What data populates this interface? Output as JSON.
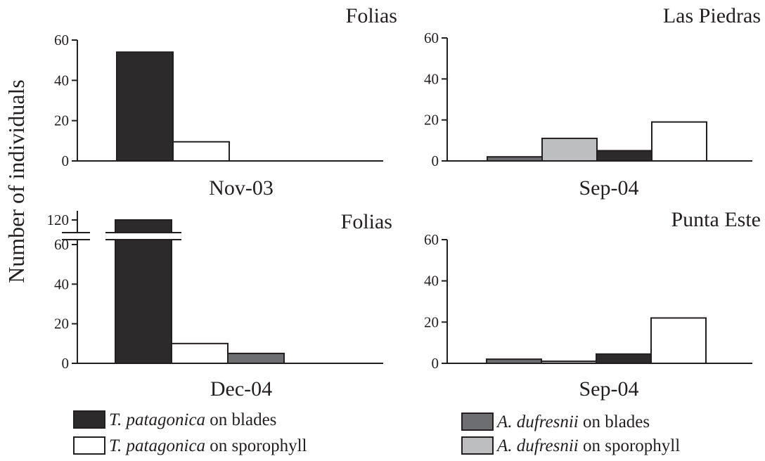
{
  "chart_data": [
    {
      "type": "bar",
      "title": "Folias",
      "category_label": "Nov-03",
      "ylim": [
        0,
        60
      ],
      "yticks": [
        "0",
        "20",
        "40",
        "60"
      ],
      "bars": [
        {
          "series": "T. patagonica on blades",
          "value": 54
        },
        {
          "series": "T. patagonica on sporophyll",
          "value": 9.5
        }
      ]
    },
    {
      "type": "bar",
      "title": "Las Piedras",
      "category_label": "Sep-04",
      "ylim": [
        0,
        60
      ],
      "yticks": [
        "0",
        "20",
        "40",
        "60"
      ],
      "bars": [
        {
          "series": "A. dufresnii on blades",
          "value": 2
        },
        {
          "series": "A. dufresnii on sporophyll",
          "value": 11
        },
        {
          "series": "T. patagonica on blades",
          "value": 5
        },
        {
          "series": "T. patagonica on sporophyll",
          "value": 19
        }
      ]
    },
    {
      "type": "bar",
      "title": "Folias",
      "category_label": "Dec-04",
      "ylim": [
        0,
        120
      ],
      "axis_break": [
        60,
        120
      ],
      "yticks": [
        "0",
        "20",
        "40",
        "60",
        "120"
      ],
      "bars": [
        {
          "series": "T. patagonica on blades",
          "value": 120
        },
        {
          "series": "T. patagonica on sporophyll",
          "value": 10
        },
        {
          "series": "A. dufresnii on blades",
          "value": 5
        }
      ]
    },
    {
      "type": "bar",
      "title": "Punta Este",
      "category_label": "Sep-04",
      "ylim": [
        0,
        60
      ],
      "yticks": [
        "0",
        "20",
        "40",
        "60"
      ],
      "bars": [
        {
          "series": "A. dufresnii on blades",
          "value": 2
        },
        {
          "series": "A. dufresnii on sporophyll",
          "value": 1
        },
        {
          "series": "T. patagonica on blades",
          "value": 4.5
        },
        {
          "series": "T. patagonica on sporophyll",
          "value": 22
        }
      ]
    }
  ],
  "ylabel": "Number of individuals",
  "legend": [
    {
      "species": "T. patagonica",
      "suffix": " on blades",
      "color": "#2d2a2b"
    },
    {
      "species": "T. patagonica",
      "suffix": " on sporophyll",
      "color": "#ffffff"
    },
    {
      "species": "A. dufresnii",
      "suffix": " on blades",
      "color": "#6d6e71"
    },
    {
      "species": "A. dufresnii",
      "suffix": " on sporophyll",
      "color": "#bcbec0"
    }
  ],
  "colors": {
    "T. patagonica on blades": "#2d2a2b",
    "T. patagonica on sporophyll": "#ffffff",
    "A. dufresnii on blades": "#6d6e71",
    "A. dufresnii on sporophyll": "#bcbec0"
  }
}
